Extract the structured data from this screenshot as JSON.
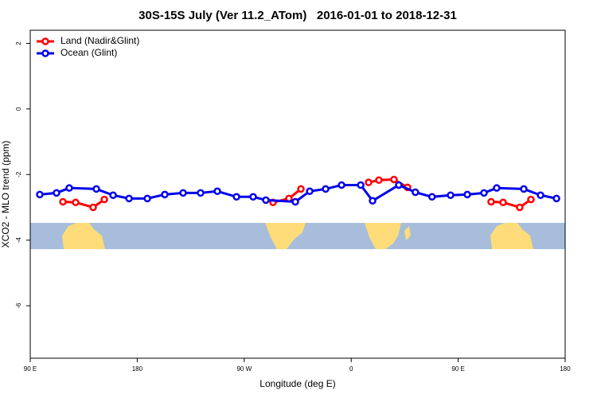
{
  "chart_data": {
    "type": "line",
    "title": "30S-15S July (Ver 11.2_ATom)   2016-01-01 to 2018-12-31",
    "x_label": "Longitude (deg E)",
    "y_label": "XCO2 - MLO trend (ppm)",
    "xlim": [
      90,
      540
    ],
    "xticks": [
      {
        "value": 90,
        "label": "90 E"
      },
      180,
      {
        "value": 270,
        "label": "90 W"
      },
      {
        "value": 360,
        "label": "0"
      },
      {
        "value": 450,
        "label": "90 E"
      },
      {
        "value": 540,
        "label": "180"
      }
    ],
    "ylim": [
      -7.6,
      2.4
    ],
    "yticks": [
      -6,
      -4,
      -2,
      0,
      2
    ],
    "legend": "top-left",
    "series": [
      {
        "name": "Land (Nadir&Glint)",
        "color": "#ff0000",
        "x": [
          117.5,
          128.2,
          142.9,
          152.3,
          null,
          294.2,
          307.6,
          317.7,
          null,
          374.6,
          383.3,
          396.0,
          407.4,
          null,
          477.7,
          487.8,
          501.8,
          511.2
        ],
        "values": [
          -2.83,
          -2.85,
          -3.0,
          -2.76,
          null,
          -2.85,
          -2.73,
          -2.44,
          null,
          -2.24,
          -2.17,
          -2.15,
          -2.39,
          null,
          -2.83,
          -2.85,
          -3.0,
          -2.76
        ]
      },
      {
        "name": "Ocean (Glint)",
        "color": "#0000ee",
        "x": [
          98.0,
          112.1,
          122.8,
          145.6,
          159.7,
          173.1,
          188.5,
          203.2,
          218.6,
          233.3,
          247.4,
          263.5,
          277.5,
          288.2,
          313.0,
          325.1,
          338.5,
          351.9,
          368.0,
          378.0,
          400.0,
          414.0,
          428.0,
          443.6,
          457.7,
          471.7,
          482.4,
          505.2,
          519.3,
          532.7
        ],
        "values": [
          -2.61,
          -2.56,
          -2.41,
          -2.44,
          -2.63,
          -2.73,
          -2.73,
          -2.61,
          -2.56,
          -2.56,
          -2.51,
          -2.68,
          -2.68,
          -2.78,
          -2.83,
          -2.51,
          -2.44,
          -2.32,
          -2.32,
          -2.8,
          -2.32,
          -2.54,
          -2.68,
          -2.63,
          -2.61,
          -2.56,
          -2.41,
          -2.44,
          -2.63,
          -2.73
        ]
      }
    ]
  }
}
